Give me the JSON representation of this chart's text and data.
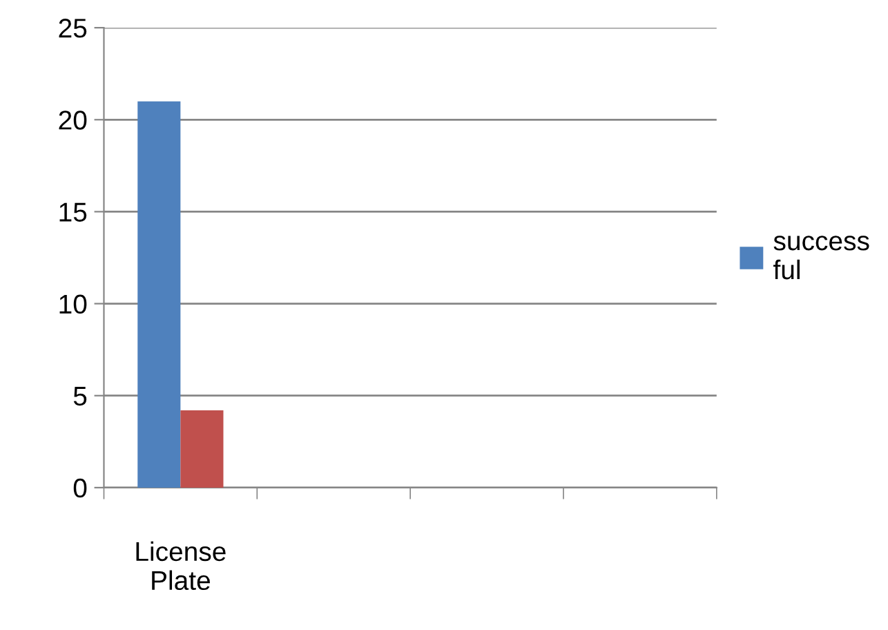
{
  "chart_data": {
    "type": "bar",
    "categories": [
      "License\nPlate",
      null,
      null,
      null
    ],
    "series": [
      {
        "name": "success\nful",
        "color": "#4f81bd",
        "values": [
          21,
          null,
          null,
          null
        ]
      },
      {
        "color": "#c0504d",
        "values": [
          4.2,
          null,
          null,
          null
        ]
      }
    ],
    "ylim": [
      0,
      25
    ],
    "yticks": [
      0,
      5,
      10,
      15,
      20,
      25
    ],
    "grid": "y",
    "legend": "right"
  }
}
